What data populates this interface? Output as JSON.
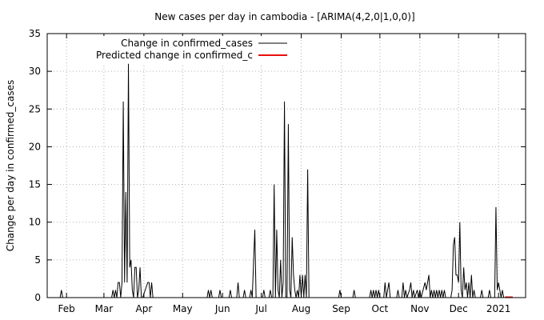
{
  "chart_data": {
    "type": "line",
    "title": "New cases per day in cambodia -  [ARIMA(4,2,0|1,0,0)]",
    "xlabel": "",
    "ylabel": "Change per day in confirmed_cases",
    "ylim": [
      0,
      35
    ],
    "y_ticks": [
      0,
      5,
      10,
      15,
      20,
      25,
      30,
      35
    ],
    "x_ticks": [
      {
        "label": "Feb",
        "date": "2020-02-01"
      },
      {
        "label": "Mar",
        "date": "2020-03-01"
      },
      {
        "label": "Apr",
        "date": "2020-04-01"
      },
      {
        "label": "May",
        "date": "2020-05-01"
      },
      {
        "label": "Jun",
        "date": "2020-06-01"
      },
      {
        "label": "Jul",
        "date": "2020-07-01"
      },
      {
        "label": "Aug",
        "date": "2020-08-01"
      },
      {
        "label": "Sep",
        "date": "2020-09-01"
      },
      {
        "label": "Oct",
        "date": "2020-10-01"
      },
      {
        "label": "Nov",
        "date": "2020-11-01"
      },
      {
        "label": "Dec",
        "date": "2020-12-01"
      },
      {
        "label": "2021",
        "date": "2021-01-01"
      }
    ],
    "xlim": [
      "2020-01-17",
      "2021-01-22"
    ],
    "grid": true,
    "legend_position": "top-left",
    "series": [
      {
        "name": "Change in confirmed_cases",
        "color": "#000000",
        "points": [
          [
            "2020-01-27",
            0
          ],
          [
            "2020-01-28",
            1
          ],
          [
            "2020-01-29",
            0
          ],
          [
            "2020-03-07",
            0
          ],
          [
            "2020-03-08",
            1
          ],
          [
            "2020-03-09",
            0
          ],
          [
            "2020-03-10",
            1
          ],
          [
            "2020-03-11",
            0
          ],
          [
            "2020-03-12",
            2
          ],
          [
            "2020-03-13",
            2
          ],
          [
            "2020-03-14",
            0
          ],
          [
            "2020-03-15",
            2
          ],
          [
            "2020-03-16",
            26
          ],
          [
            "2020-03-17",
            2
          ],
          [
            "2020-03-18",
            14
          ],
          [
            "2020-03-19",
            2
          ],
          [
            "2020-03-20",
            31
          ],
          [
            "2020-03-21",
            4
          ],
          [
            "2020-03-22",
            5
          ],
          [
            "2020-03-23",
            1
          ],
          [
            "2020-03-24",
            0
          ],
          [
            "2020-03-25",
            4
          ],
          [
            "2020-03-26",
            4
          ],
          [
            "2020-03-27",
            0
          ],
          [
            "2020-03-28",
            1
          ],
          [
            "2020-03-29",
            4
          ],
          [
            "2020-03-30",
            0
          ],
          [
            "2020-03-31",
            0
          ],
          [
            "2020-04-04",
            2
          ],
          [
            "2020-04-05",
            2
          ],
          [
            "2020-04-06",
            0
          ],
          [
            "2020-04-07",
            2
          ],
          [
            "2020-04-08",
            0
          ],
          [
            "2020-05-20",
            0
          ],
          [
            "2020-05-21",
            1
          ],
          [
            "2020-05-22",
            0
          ],
          [
            "2020-05-23",
            1
          ],
          [
            "2020-05-24",
            0
          ],
          [
            "2020-05-29",
            0
          ],
          [
            "2020-05-30",
            1
          ],
          [
            "2020-05-31",
            0
          ],
          [
            "2020-06-06",
            0
          ],
          [
            "2020-06-07",
            1
          ],
          [
            "2020-06-08",
            0
          ],
          [
            "2020-06-12",
            0
          ],
          [
            "2020-06-13",
            2
          ],
          [
            "2020-06-14",
            0
          ],
          [
            "2020-06-17",
            0
          ],
          [
            "2020-06-18",
            1
          ],
          [
            "2020-06-19",
            0
          ],
          [
            "2020-06-22",
            0
          ],
          [
            "2020-06-23",
            1
          ],
          [
            "2020-06-24",
            0
          ],
          [
            "2020-06-26",
            9
          ],
          [
            "2020-06-27",
            0
          ],
          [
            "2020-06-28",
            0
          ],
          [
            "2020-07-02",
            0
          ],
          [
            "2020-07-03",
            1
          ],
          [
            "2020-07-04",
            0
          ],
          [
            "2020-07-07",
            0
          ],
          [
            "2020-07-08",
            1
          ],
          [
            "2020-07-09",
            0
          ],
          [
            "2020-07-10",
            0
          ],
          [
            "2020-07-11",
            15
          ],
          [
            "2020-07-12",
            0
          ],
          [
            "2020-07-13",
            9
          ],
          [
            "2020-07-14",
            1
          ],
          [
            "2020-07-15",
            0
          ],
          [
            "2020-07-16",
            5
          ],
          [
            "2020-07-17",
            0
          ],
          [
            "2020-07-18",
            2
          ],
          [
            "2020-07-19",
            26
          ],
          [
            "2020-07-20",
            0
          ],
          [
            "2020-07-21",
            0
          ],
          [
            "2020-07-22",
            23
          ],
          [
            "2020-07-23",
            1
          ],
          [
            "2020-07-24",
            0
          ],
          [
            "2020-07-25",
            8
          ],
          [
            "2020-07-26",
            3
          ],
          [
            "2020-07-27",
            1
          ],
          [
            "2020-07-28",
            0
          ],
          [
            "2020-07-29",
            1
          ],
          [
            "2020-07-30",
            0
          ],
          [
            "2020-07-31",
            3
          ],
          [
            "2020-08-01",
            0
          ],
          [
            "2020-08-02",
            3
          ],
          [
            "2020-08-03",
            0
          ],
          [
            "2020-08-04",
            3
          ],
          [
            "2020-08-05",
            0
          ],
          [
            "2020-08-06",
            17
          ],
          [
            "2020-08-07",
            0
          ],
          [
            "2020-08-08",
            0
          ],
          [
            "2020-08-30",
            0
          ],
          [
            "2020-08-31",
            1
          ],
          [
            "2020-09-01",
            0
          ],
          [
            "2020-09-10",
            0
          ],
          [
            "2020-09-11",
            1
          ],
          [
            "2020-09-12",
            0
          ],
          [
            "2020-09-23",
            0
          ],
          [
            "2020-09-24",
            1
          ],
          [
            "2020-09-25",
            0
          ],
          [
            "2020-09-26",
            1
          ],
          [
            "2020-09-27",
            0
          ],
          [
            "2020-09-28",
            1
          ],
          [
            "2020-09-29",
            0
          ],
          [
            "2020-09-30",
            1
          ],
          [
            "2020-10-01",
            0
          ],
          [
            "2020-10-04",
            0
          ],
          [
            "2020-10-05",
            2
          ],
          [
            "2020-10-06",
            0
          ],
          [
            "2020-10-07",
            1
          ],
          [
            "2020-10-08",
            2
          ],
          [
            "2020-10-09",
            0
          ],
          [
            "2020-10-14",
            0
          ],
          [
            "2020-10-15",
            1
          ],
          [
            "2020-10-16",
            0
          ],
          [
            "2020-10-18",
            0
          ],
          [
            "2020-10-19",
            2
          ],
          [
            "2020-10-20",
            0
          ],
          [
            "2020-10-21",
            1
          ],
          [
            "2020-10-22",
            0
          ],
          [
            "2020-10-24",
            1
          ],
          [
            "2020-10-25",
            2
          ],
          [
            "2020-10-26",
            0
          ],
          [
            "2020-10-27",
            1
          ],
          [
            "2020-10-28",
            0
          ],
          [
            "2020-10-30",
            1
          ],
          [
            "2020-10-31",
            0
          ],
          [
            "2020-11-01",
            1
          ],
          [
            "2020-11-02",
            0
          ],
          [
            "2020-11-05",
            2
          ],
          [
            "2020-11-06",
            1
          ],
          [
            "2020-11-07",
            2
          ],
          [
            "2020-11-08",
            3
          ],
          [
            "2020-11-09",
            0
          ],
          [
            "2020-11-10",
            1
          ],
          [
            "2020-11-11",
            0
          ],
          [
            "2020-11-12",
            1
          ],
          [
            "2020-11-13",
            0
          ],
          [
            "2020-11-14",
            1
          ],
          [
            "2020-11-15",
            0
          ],
          [
            "2020-11-16",
            1
          ],
          [
            "2020-11-17",
            0
          ],
          [
            "2020-11-18",
            1
          ],
          [
            "2020-11-19",
            0
          ],
          [
            "2020-11-20",
            1
          ],
          [
            "2020-11-21",
            0
          ],
          [
            "2020-11-25",
            0
          ],
          [
            "2020-11-26",
            1
          ],
          [
            "2020-11-27",
            7
          ],
          [
            "2020-11-28",
            8
          ],
          [
            "2020-11-29",
            3
          ],
          [
            "2020-11-30",
            3
          ],
          [
            "2020-12-01",
            2
          ],
          [
            "2020-12-02",
            10
          ],
          [
            "2020-12-03",
            1
          ],
          [
            "2020-12-04",
            0
          ],
          [
            "2020-12-05",
            4
          ],
          [
            "2020-12-06",
            1
          ],
          [
            "2020-12-07",
            2
          ],
          [
            "2020-12-08",
            0
          ],
          [
            "2020-12-09",
            2
          ],
          [
            "2020-12-10",
            0
          ],
          [
            "2020-12-11",
            3
          ],
          [
            "2020-12-12",
            0
          ],
          [
            "2020-12-13",
            1
          ],
          [
            "2020-12-14",
            0
          ],
          [
            "2020-12-18",
            0
          ],
          [
            "2020-12-19",
            1
          ],
          [
            "2020-12-20",
            0
          ],
          [
            "2020-12-24",
            0
          ],
          [
            "2020-12-25",
            1
          ],
          [
            "2020-12-26",
            0
          ],
          [
            "2020-12-29",
            0
          ],
          [
            "2020-12-30",
            12
          ],
          [
            "2020-12-31",
            1
          ],
          [
            "2021-01-01",
            2
          ],
          [
            "2021-01-02",
            1
          ],
          [
            "2021-01-03",
            0
          ],
          [
            "2021-01-04",
            1
          ],
          [
            "2021-01-05",
            0
          ]
        ]
      },
      {
        "name": "Predicted change in confirmed_c",
        "color": "#e8100c",
        "points": [
          [
            "2021-01-06",
            0.05
          ],
          [
            "2021-01-07",
            0.05
          ],
          [
            "2021-01-08",
            0.05
          ],
          [
            "2021-01-09",
            0.05
          ],
          [
            "2021-01-10",
            0.05
          ],
          [
            "2021-01-11",
            0.05
          ],
          [
            "2021-01-12",
            0.05
          ]
        ]
      }
    ]
  }
}
